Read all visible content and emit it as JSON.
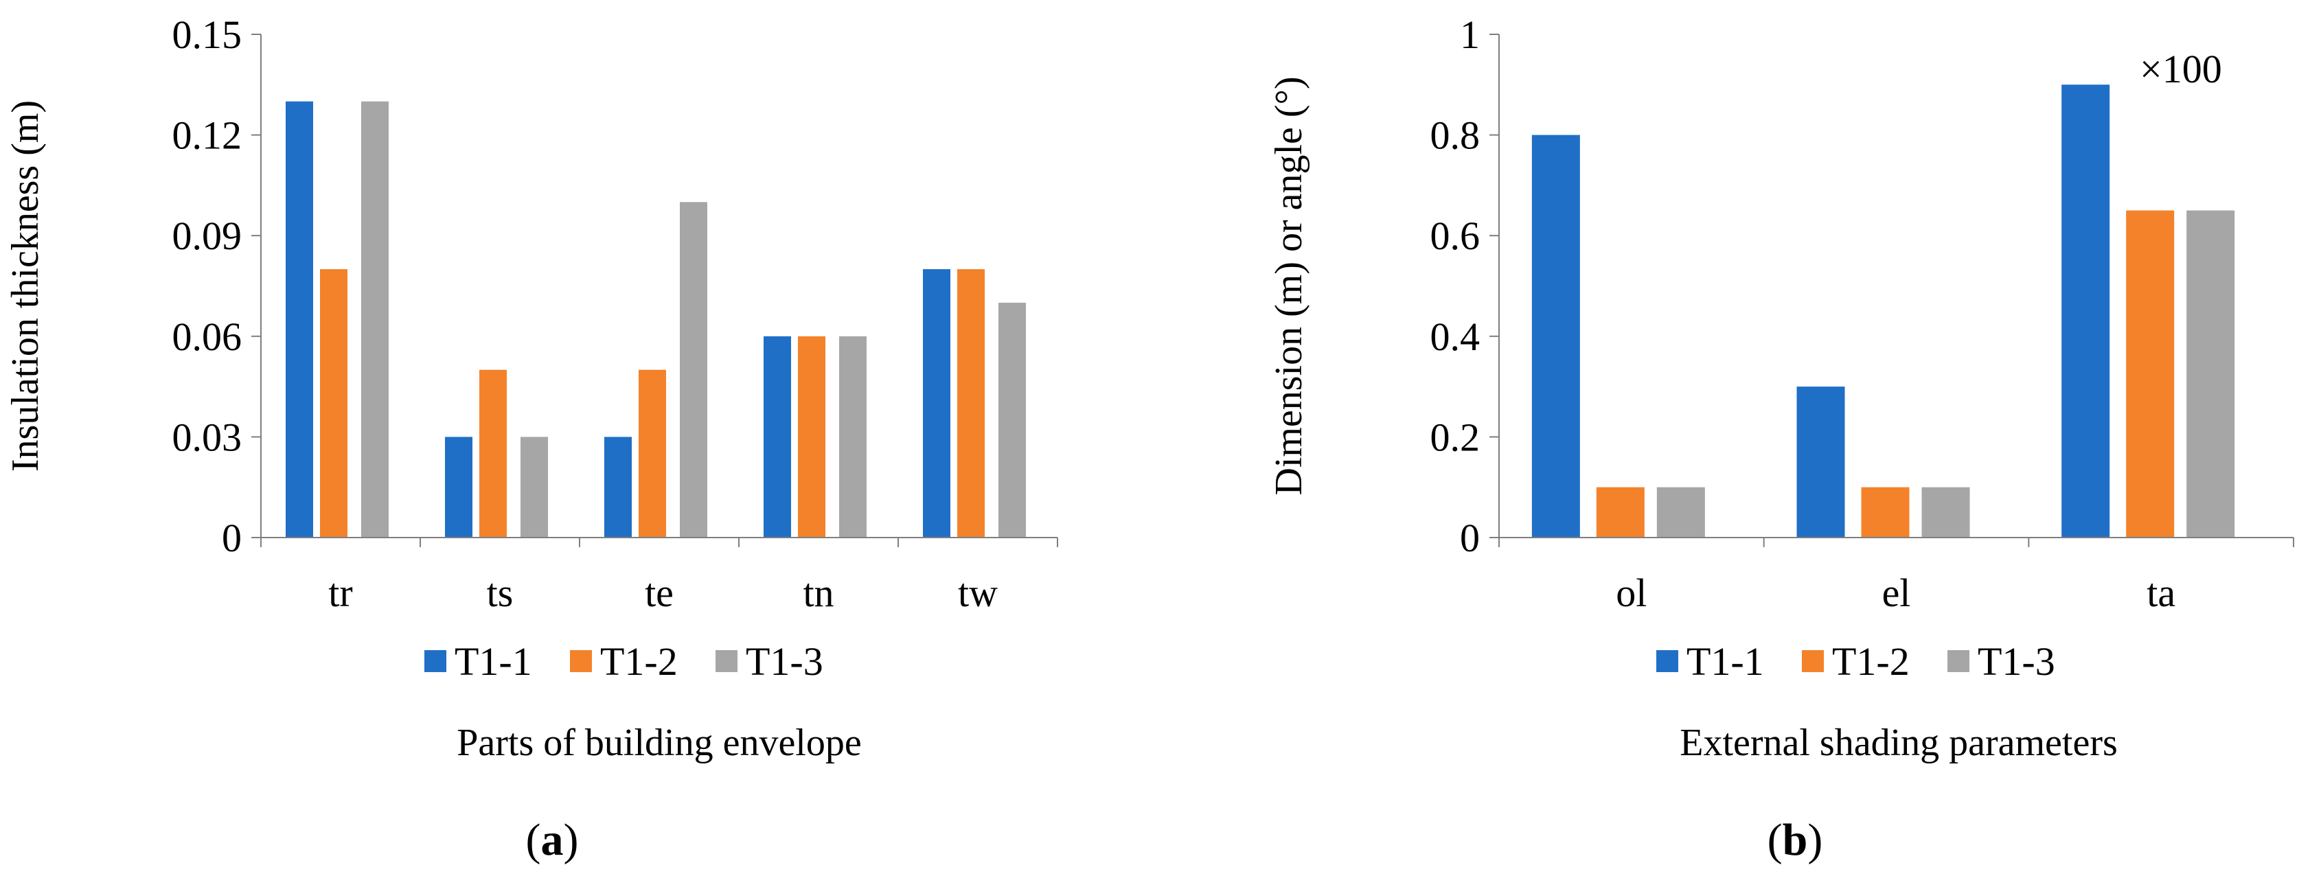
{
  "chart_data": [
    {
      "panel": "a",
      "type": "bar",
      "categories": [
        "tr",
        "ts",
        "te",
        "tn",
        "tw"
      ],
      "series": [
        {
          "name": "T1-1",
          "values": [
            0.13,
            0.03,
            0.03,
            0.06,
            0.08
          ]
        },
        {
          "name": "T1-2",
          "values": [
            0.08,
            0.05,
            0.05,
            0.06,
            0.08
          ]
        },
        {
          "name": "T1-3",
          "values": [
            0.13,
            0.03,
            0.1,
            0.06,
            0.07
          ]
        }
      ],
      "ylabel": "Insulation thickness (m)",
      "xlabel": "Parts of building envelope",
      "ylim": [
        0,
        0.15
      ],
      "yticks": [
        "0",
        "0.03",
        "0.06",
        "0.09",
        "0.12",
        "0.15"
      ],
      "grid": false,
      "legend_position": "bottom",
      "caption_letter": "a"
    },
    {
      "panel": "b",
      "type": "bar",
      "categories": [
        "ol",
        "el",
        "ta"
      ],
      "series": [
        {
          "name": "T1-1",
          "values": [
            0.8,
            0.3,
            0.9
          ]
        },
        {
          "name": "T1-2",
          "values": [
            0.1,
            0.1,
            0.65
          ]
        },
        {
          "name": "T1-3",
          "values": [
            0.1,
            0.1,
            0.65
          ]
        }
      ],
      "ylabel": "Dimension (m) or angle (°)",
      "xlabel": "External shading parameters",
      "ylim": [
        0,
        1
      ],
      "yticks": [
        "0",
        "0.2",
        "0.4",
        "0.6",
        "0.8",
        "1"
      ],
      "grid": false,
      "legend_position": "bottom",
      "annotation": "×100",
      "caption_letter": "b"
    }
  ],
  "colors": {
    "T1-1": "#1f6fc6",
    "T1-2": "#f4822a",
    "T1-3": "#a6a6a6",
    "axis": "#7f7f7f"
  }
}
